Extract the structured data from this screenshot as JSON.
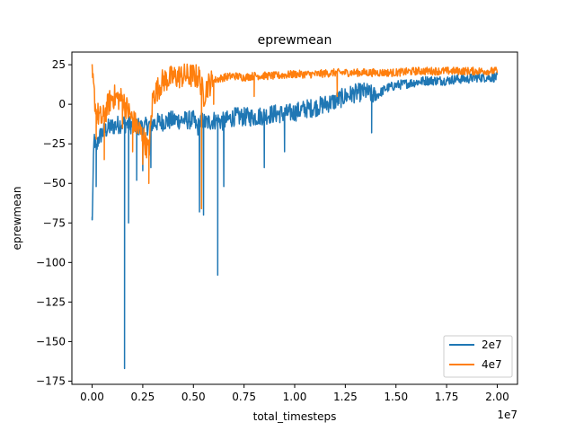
{
  "chart_data": {
    "type": "line",
    "title": "eprewmean",
    "xlabel": "total_timesteps",
    "ylabel": "eprewmean",
    "x_offset_text": "1e7",
    "xlim": [
      -0.1,
      2.1
    ],
    "ylim": [
      -177,
      33
    ],
    "x_ticks": [
      0.0,
      0.25,
      0.5,
      0.75,
      1.0,
      1.25,
      1.5,
      1.75,
      2.0
    ],
    "x_tick_labels": [
      "0.00",
      "0.25",
      "0.50",
      "0.75",
      "1.00",
      "1.25",
      "1.50",
      "1.75",
      "2.00"
    ],
    "y_ticks": [
      25,
      0,
      -25,
      -50,
      -75,
      -100,
      -125,
      -150,
      -175
    ],
    "y_tick_labels": [
      "25",
      "0",
      "−25",
      "−50",
      "−75",
      "−100",
      "−125",
      "−150",
      "−175"
    ],
    "grid": false,
    "legend_position": "lower-right",
    "series": [
      {
        "name": "2e7",
        "color": "#1f77b4",
        "x": [
          0.0,
          0.01,
          0.02,
          0.03,
          0.05,
          0.08,
          0.1,
          0.15,
          0.2,
          0.25,
          0.3,
          0.35,
          0.4,
          0.45,
          0.5,
          0.52,
          0.54,
          0.56,
          0.6,
          0.65,
          0.7,
          0.75,
          0.8,
          0.85,
          0.9,
          0.95,
          1.0,
          1.05,
          1.1,
          1.15,
          1.2,
          1.25,
          1.3,
          1.35,
          1.4,
          1.45,
          1.5,
          1.55,
          1.6,
          1.65,
          1.7,
          1.75,
          1.8,
          1.85,
          1.9,
          1.95,
          2.0
        ],
        "y": [
          -73,
          -20,
          -30,
          -22,
          -18,
          -15,
          -14,
          -12,
          -13,
          -15,
          -12,
          -11,
          -10,
          -10,
          -10,
          -15,
          -10,
          -12,
          -10,
          -11,
          -8,
          -8,
          -8,
          -7,
          -6,
          -6,
          -5,
          -3,
          -2,
          0,
          2,
          5,
          7,
          8,
          5,
          10,
          12,
          13,
          14,
          15,
          15,
          15,
          16,
          16,
          17,
          17,
          17
        ],
        "spikes": [
          {
            "x": 0.0,
            "y": -73
          },
          {
            "x": 0.02,
            "y": -52
          },
          {
            "x": 0.16,
            "y": -167
          },
          {
            "x": 0.18,
            "y": -75
          },
          {
            "x": 0.22,
            "y": -48
          },
          {
            "x": 0.25,
            "y": -42
          },
          {
            "x": 0.29,
            "y": -40
          },
          {
            "x": 0.53,
            "y": -68
          },
          {
            "x": 0.55,
            "y": -70
          },
          {
            "x": 0.62,
            "y": -108
          },
          {
            "x": 0.65,
            "y": -52
          },
          {
            "x": 0.85,
            "y": -40
          },
          {
            "x": 0.95,
            "y": -30
          },
          {
            "x": 1.38,
            "y": -18
          }
        ]
      },
      {
        "name": "4e7",
        "color": "#ff7f0e",
        "x": [
          0.0,
          0.02,
          0.05,
          0.08,
          0.1,
          0.15,
          0.2,
          0.25,
          0.28,
          0.3,
          0.35,
          0.4,
          0.45,
          0.5,
          0.53,
          0.55,
          0.57,
          0.6,
          0.65,
          0.7,
          0.75,
          0.8,
          0.9,
          1.0,
          1.1,
          1.2,
          1.3,
          1.4,
          1.5,
          1.6,
          1.7,
          1.8,
          1.9,
          2.0
        ],
        "y": [
          18,
          -5,
          -10,
          0,
          5,
          3,
          -10,
          -20,
          -30,
          5,
          15,
          17,
          18,
          18,
          17,
          5,
          12,
          15,
          17,
          18,
          17,
          18,
          18,
          19,
          19,
          20,
          20,
          20,
          20,
          21,
          21,
          21,
          21,
          21
        ],
        "spikes": [
          {
            "x": 0.02,
            "y": -22
          },
          {
            "x": 0.06,
            "y": -35
          },
          {
            "x": 0.15,
            "y": -15
          },
          {
            "x": 0.2,
            "y": -30
          },
          {
            "x": 0.25,
            "y": -38
          },
          {
            "x": 0.28,
            "y": -50
          },
          {
            "x": 0.54,
            "y": -66
          },
          {
            "x": 0.6,
            "y": 0
          },
          {
            "x": 0.8,
            "y": 5
          },
          {
            "x": 1.21,
            "y": 5
          }
        ]
      }
    ]
  }
}
